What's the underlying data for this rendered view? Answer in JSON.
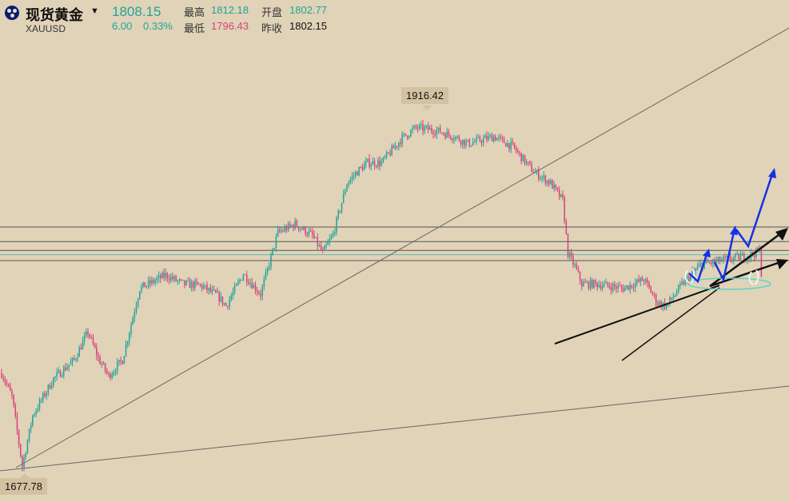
{
  "header": {
    "name": "现货黄金",
    "symbol": "XAUUSD",
    "price": "1808.15",
    "change": "6.00",
    "change_pct": "0.33%",
    "high_label": "最高",
    "high": "1812.18",
    "open_label": "开盘",
    "open": "1802.77",
    "low_label": "最低",
    "low": "1796.43",
    "prev_close_label": "昨收",
    "prev_close": "1802.15"
  },
  "colors": {
    "background": "#e0d3b8",
    "up": "#22a39a",
    "down": "#d8427a",
    "projection": "#1530e8",
    "trend": "#111111"
  },
  "chart_data": {
    "type": "candlestick",
    "instrument": "XAUUSD",
    "ylim": [
      1665,
      1965
    ],
    "annotations": [
      {
        "text": "1916.42",
        "kind": "high-marker"
      },
      {
        "text": "1677.78",
        "kind": "low-marker"
      }
    ],
    "horizontal_levels": [
      1842,
      1832,
      1826,
      1823,
      1819
    ],
    "high_value": 1916.42,
    "low_value": 1677.78,
    "anchors": [
      [
        0,
        1742
      ],
      [
        6,
        1726
      ],
      [
        12,
        1678
      ],
      [
        18,
        1713
      ],
      [
        30,
        1738
      ],
      [
        42,
        1751
      ],
      [
        50,
        1770
      ],
      [
        56,
        1752
      ],
      [
        62,
        1740
      ],
      [
        70,
        1751
      ],
      [
        80,
        1800
      ],
      [
        95,
        1809
      ],
      [
        105,
        1803
      ],
      [
        115,
        1802
      ],
      [
        125,
        1795
      ],
      [
        130,
        1788
      ],
      [
        140,
        1810
      ],
      [
        150,
        1796
      ],
      [
        160,
        1838
      ],
      [
        170,
        1844
      ],
      [
        180,
        1836
      ],
      [
        186,
        1824
      ],
      [
        192,
        1837
      ],
      [
        200,
        1872
      ],
      [
        206,
        1880
      ],
      [
        212,
        1886
      ],
      [
        220,
        1886
      ],
      [
        232,
        1903
      ],
      [
        240,
        1910
      ],
      [
        252,
        1908
      ],
      [
        262,
        1904
      ],
      [
        270,
        1899
      ],
      [
        285,
        1904
      ],
      [
        296,
        1897
      ],
      [
        308,
        1880
      ],
      [
        318,
        1872
      ],
      [
        325,
        1860
      ],
      [
        328,
        1824
      ],
      [
        332,
        1815
      ],
      [
        336,
        1803
      ],
      [
        345,
        1803
      ],
      [
        360,
        1800
      ],
      [
        372,
        1806
      ],
      [
        380,
        1790
      ],
      [
        385,
        1788
      ],
      [
        395,
        1804
      ],
      [
        405,
        1816
      ],
      [
        420,
        1820
      ],
      [
        432,
        1822
      ],
      [
        440,
        1826
      ]
    ],
    "candle_count": 441
  }
}
